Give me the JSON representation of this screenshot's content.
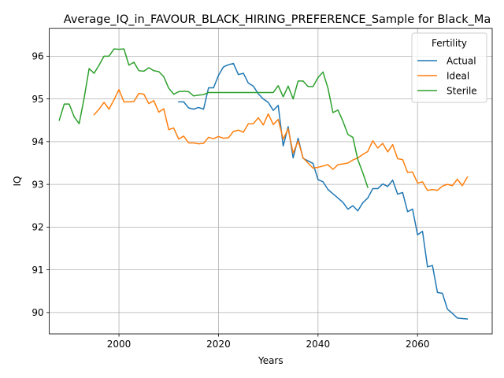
{
  "chart_data": {
    "type": "line",
    "title": "Average_IQ_in_FAVOUR_BLACK_HIRING_PREFERENCE_Sample for Black_Ma",
    "xlabel": "Years",
    "ylabel": "IQ",
    "xlim": [
      1986,
      2075
    ],
    "ylim": [
      89.5,
      96.65
    ],
    "xticks": [
      2000,
      2020,
      2040,
      2060
    ],
    "yticks": [
      90,
      91,
      92,
      93,
      94,
      95,
      96
    ],
    "grid": true,
    "legend": {
      "title": "Fertility",
      "placement": "top-right"
    },
    "colors": {
      "Actual": "#1f77b4",
      "Ideal": "#ff7f0e",
      "Sterile": "#2ca02c"
    },
    "series": [
      {
        "name": "Actual",
        "x": [
          2012,
          2013,
          2014,
          2015,
          2016,
          2017,
          2018,
          2019,
          2020,
          2021,
          2022,
          2023,
          2024,
          2025,
          2026,
          2027,
          2028,
          2029,
          2030,
          2031,
          2032,
          2033,
          2034,
          2035,
          2036,
          2037,
          2038,
          2039,
          2040,
          2041,
          2042,
          2043,
          2044,
          2045,
          2046,
          2047,
          2048,
          2049,
          2050,
          2051,
          2052,
          2053,
          2054,
          2055,
          2056,
          2057,
          2058,
          2059,
          2060,
          2061,
          2062,
          2063,
          2064,
          2065,
          2066,
          2067,
          2068,
          2069,
          2070
        ],
        "y": [
          94.93,
          94.93,
          94.79,
          94.76,
          94.8,
          94.76,
          95.26,
          95.26,
          95.55,
          95.75,
          95.8,
          95.83,
          95.57,
          95.6,
          95.37,
          95.3,
          95.12,
          95.0,
          94.92,
          94.73,
          94.85,
          93.9,
          94.35,
          93.62,
          94.08,
          93.61,
          93.55,
          93.49,
          93.11,
          93.06,
          92.88,
          92.78,
          92.68,
          92.58,
          92.42,
          92.5,
          92.38,
          92.57,
          92.68,
          92.9,
          92.9,
          93.01,
          92.95,
          93.1,
          92.77,
          92.81,
          92.36,
          92.42,
          91.82,
          91.9,
          91.07,
          91.1,
          90.47,
          90.45,
          90.08,
          89.98,
          89.87,
          89.86,
          89.85
        ]
      },
      {
        "name": "Ideal",
        "x": [
          1995,
          1996,
          1997,
          1998,
          1999,
          2000,
          2001,
          2002,
          2003,
          2004,
          2005,
          2006,
          2007,
          2008,
          2009,
          2010,
          2011,
          2012,
          2013,
          2014,
          2015,
          2016,
          2017,
          2018,
          2019,
          2020,
          2021,
          2022,
          2023,
          2024,
          2025,
          2026,
          2027,
          2028,
          2029,
          2030,
          2031,
          2032,
          2033,
          2034,
          2035,
          2036,
          2037,
          2038,
          2039,
          2040,
          2041,
          2042,
          2043,
          2044,
          2045,
          2046,
          2047,
          2048,
          2049,
          2050,
          2051,
          2052,
          2053,
          2054,
          2055,
          2056,
          2057,
          2058,
          2059,
          2060,
          2061,
          2062,
          2063,
          2064,
          2065,
          2066,
          2067,
          2068,
          2069,
          2070
        ],
        "y": [
          94.63,
          94.76,
          94.92,
          94.76,
          94.98,
          95.22,
          94.93,
          94.93,
          94.94,
          95.13,
          95.11,
          94.89,
          94.96,
          94.69,
          94.77,
          94.28,
          94.32,
          94.06,
          94.13,
          93.97,
          93.97,
          93.95,
          93.96,
          94.1,
          94.07,
          94.12,
          94.08,
          94.09,
          94.24,
          94.27,
          94.22,
          94.42,
          94.42,
          94.56,
          94.39,
          94.65,
          94.4,
          94.52,
          94.06,
          94.3,
          93.73,
          94.02,
          93.62,
          93.5,
          93.38,
          93.4,
          93.43,
          93.46,
          93.35,
          93.46,
          93.48,
          93.5,
          93.57,
          93.62,
          93.7,
          93.77,
          94.02,
          93.85,
          93.96,
          93.76,
          93.93,
          93.6,
          93.58,
          93.28,
          93.29,
          93.03,
          93.06,
          92.86,
          92.88,
          92.86,
          92.96,
          93.0,
          92.97,
          93.12,
          92.97,
          93.17
        ]
      },
      {
        "name": "Sterile",
        "x": [
          1988,
          1989,
          1990,
          1991,
          1992,
          1993,
          1994,
          1995,
          1996,
          1997,
          1998,
          1999,
          2000,
          2001,
          2002,
          2003,
          2004,
          2005,
          2006,
          2007,
          2008,
          2009,
          2010,
          2011,
          2012,
          2013,
          2014,
          2015,
          2016,
          2017,
          2018,
          2019,
          2020,
          2021,
          2022,
          2023,
          2024,
          2025,
          2026,
          2027,
          2028,
          2029,
          2030,
          2031,
          2032,
          2033,
          2034,
          2035,
          2036,
          2037,
          2038,
          2039,
          2040,
          2041,
          2042,
          2043,
          2044,
          2045,
          2046,
          2047,
          2048,
          2049,
          2050
        ],
        "y": [
          94.5,
          94.88,
          94.88,
          94.58,
          94.42,
          95.02,
          95.71,
          95.6,
          95.79,
          96.0,
          96.0,
          96.17,
          96.16,
          96.17,
          95.79,
          95.86,
          95.66,
          95.65,
          95.73,
          95.66,
          95.64,
          95.52,
          95.25,
          95.11,
          95.17,
          95.18,
          95.17,
          95.07,
          95.09,
          95.1,
          95.15,
          95.15,
          95.15,
          95.15,
          95.15,
          95.15,
          95.15,
          95.15,
          95.15,
          95.15,
          95.15,
          95.15,
          95.15,
          95.15,
          95.31,
          95.05,
          95.3,
          95.0,
          95.42,
          95.42,
          95.29,
          95.29,
          95.5,
          95.63,
          95.25,
          94.68,
          94.74,
          94.48,
          94.17,
          94.1,
          93.58,
          93.27,
          92.93
        ]
      }
    ]
  }
}
